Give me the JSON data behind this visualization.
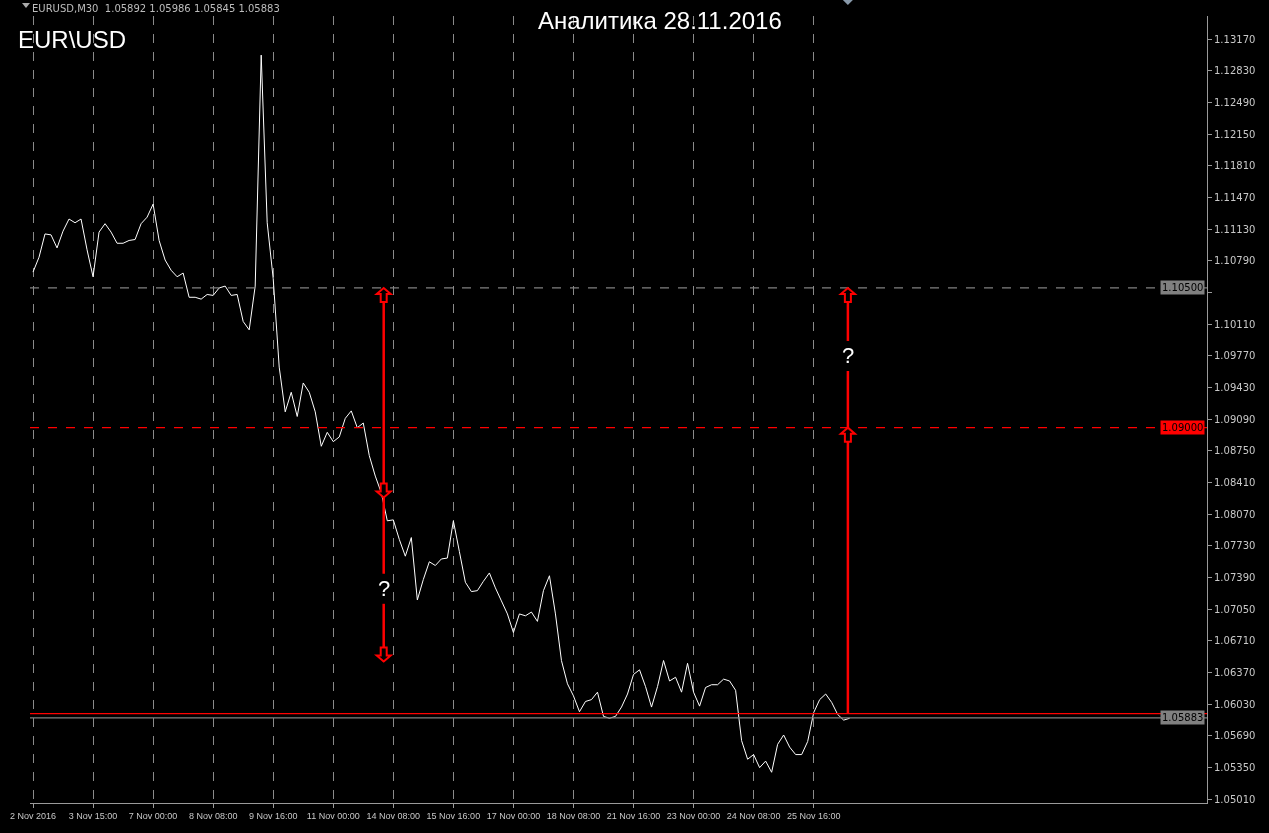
{
  "chart_data": {
    "type": "line",
    "title": "Аналитика 28.11.2016",
    "annotations": [
      "EURUSD,M30  1.05892 1.05986 1.05845 1.05883",
      "EUR\\USD",
      {
        "text": "?",
        "y": 1.0727
      },
      {
        "text": "?",
        "y": 1.0977
      }
    ],
    "categories": [
      "2 Nov 2016",
      null,
      null,
      null,
      null,
      null,
      null,
      null,
      null,
      null,
      "3 Nov 15:00",
      null,
      null,
      null,
      null,
      null,
      null,
      null,
      null,
      null,
      "7 Nov 00:00",
      null,
      null,
      null,
      null,
      null,
      null,
      null,
      null,
      null,
      "8 Nov 08:00",
      null,
      null,
      null,
      null,
      null,
      null,
      null,
      null,
      null,
      "9 Nov 16:00",
      null,
      null,
      null,
      null,
      null,
      null,
      null,
      null,
      null,
      "11 Nov 00:00",
      null,
      null,
      null,
      null,
      null,
      null,
      null,
      null,
      null,
      "14 Nov 08:00",
      null,
      null,
      null,
      null,
      null,
      null,
      null,
      null,
      null,
      "15 Nov 16:00",
      null,
      null,
      null,
      null,
      null,
      null,
      null,
      null,
      null,
      "17 Nov 00:00",
      null,
      null,
      null,
      null,
      null,
      null,
      null,
      null,
      null,
      "18 Nov 08:00",
      null,
      null,
      null,
      null,
      null,
      null,
      null,
      null,
      null,
      "21 Nov 16:00",
      null,
      null,
      null,
      null,
      null,
      null,
      null,
      null,
      null,
      "23 Nov 00:00",
      null,
      null,
      null,
      null,
      null,
      null,
      null,
      null,
      null,
      "24 Nov 08:00",
      null,
      null,
      null,
      null,
      null,
      null,
      null,
      null,
      null,
      "25 Nov 16:00",
      null,
      null,
      null,
      null,
      null,
      null,
      null,
      null,
      null,
      null,
      null,
      null,
      null,
      null,
      null,
      null,
      null,
      null,
      null,
      null,
      null,
      null,
      null,
      null,
      null,
      null,
      null,
      null,
      null,
      null,
      null,
      null,
      null,
      null,
      null,
      null,
      null,
      null,
      null,
      null,
      null,
      null,
      null,
      null,
      null,
      null,
      null,
      null,
      null,
      null,
      null,
      null,
      null,
      null,
      null,
      null,
      null,
      null,
      null,
      null,
      null,
      null,
      null,
      null,
      null
    ],
    "series": [
      {
        "color": "#ffffff",
        "values": [
          1.1067,
          1.1083,
          1.1108,
          1.1107,
          1.1093,
          1.1111,
          1.1124,
          1.112,
          1.1124,
          1.1091,
          1.1062,
          1.111,
          1.1119,
          1.111,
          1.1098,
          1.1098,
          1.1101,
          1.1102,
          1.1119,
          1.1126,
          1.114,
          1.1101,
          1.108,
          1.1069,
          1.1062,
          1.1066,
          1.104,
          1.104,
          1.1038,
          1.1043,
          1.1042,
          1.105,
          1.1052,
          1.1042,
          1.1043,
          1.1014,
          1.1005,
          1.1052,
          1.13,
          1.112,
          1.106,
          1.0965,
          1.0917,
          1.0938,
          1.0912,
          1.0948,
          1.0938,
          1.0917,
          1.088,
          1.0895,
          1.0885,
          1.089,
          1.091,
          1.0918,
          1.09,
          1.0905,
          1.087,
          1.0848,
          1.083,
          1.08,
          1.0801,
          1.078,
          1.0762,
          1.0782,
          1.0715,
          1.0737,
          1.0756,
          1.0752,
          1.0759,
          1.076,
          1.08,
          1.0767,
          1.0734,
          1.0724,
          1.0725,
          1.0735,
          1.0744,
          1.0728,
          1.0714,
          1.07,
          1.068,
          1.07,
          1.0698,
          1.0702,
          1.0692,
          1.0725,
          1.0741,
          1.07,
          1.065,
          1.0625,
          1.0612,
          1.0595,
          1.0606,
          1.0608,
          1.0616,
          1.059,
          1.0588,
          1.059,
          1.06,
          1.0614,
          1.0635,
          1.064,
          1.0622,
          1.06,
          1.0622,
          1.065,
          1.0628,
          1.0632,
          1.0616,
          1.0647,
          1.0616,
          1.0601,
          1.0621,
          1.0624,
          1.0624,
          1.063,
          1.0628,
          1.0618,
          1.0564,
          1.0544,
          1.0549,
          1.0535,
          1.0542,
          1.053,
          1.056,
          1.057,
          1.0557,
          1.0549,
          1.0549,
          1.0563,
          1.0594,
          1.0608,
          1.0614,
          1.0605,
          1.0592,
          1.0586,
          1.0588,
          null,
          null,
          null,
          null,
          null,
          null,
          null,
          null,
          null,
          null,
          null,
          null,
          null,
          null,
          null,
          null,
          null,
          null,
          null,
          null,
          null,
          null,
          null,
          null,
          null,
          null,
          null,
          null,
          null,
          null,
          null,
          null,
          null,
          null,
          null,
          null,
          null,
          null,
          null,
          null,
          null,
          null,
          null,
          null,
          null,
          null,
          null,
          null,
          null,
          null,
          null,
          null,
          null,
          null,
          null,
          null,
          null,
          null,
          null
        ]
      }
    ],
    "ylim": [
      1.0497,
      1.1342
    ],
    "yticks": [
      {
        "value": 1.0501,
        "label": "1.05010"
      },
      {
        "value": 1.0535,
        "label": "1.05350"
      },
      {
        "value": 1.0569,
        "label": "1.05690"
      },
      {
        "value": 1.0603,
        "label": "1.06030"
      },
      {
        "value": 1.0637,
        "label": "1.06370"
      },
      {
        "value": 1.0671,
        "label": "1.06710"
      },
      {
        "value": 1.0705,
        "label": "1.07050"
      },
      {
        "value": 1.0739,
        "label": "1.07390"
      },
      {
        "value": 1.0773,
        "label": "1.07730"
      },
      {
        "value": 1.0807,
        "label": "1.08070"
      },
      {
        "value": 1.0841,
        "label": "1.08410"
      },
      {
        "value": 1.0875,
        "label": "1.08750"
      },
      {
        "value": 1.0909,
        "label": "1.09090"
      },
      {
        "value": 1.0943,
        "label": "1.09430"
      },
      {
        "value": 1.0977,
        "label": "1.09770"
      },
      {
        "value": 1.1011,
        "label": "1.10110"
      },
      {
        "value": 1.1045,
        "label": null
      },
      {
        "value": 1.1079,
        "label": "1.10790"
      },
      {
        "value": 1.1113,
        "label": "1.11130"
      },
      {
        "value": 1.1147,
        "label": "1.11470"
      },
      {
        "value": 1.1181,
        "label": "1.11810"
      },
      {
        "value": 1.1215,
        "label": "1.12150"
      },
      {
        "value": 1.1249,
        "label": "1.12490"
      },
      {
        "value": 1.1283,
        "label": "1.12830"
      },
      {
        "value": 1.1317,
        "label": "1.13170"
      }
    ],
    "ref_lines": [
      {
        "axis": "y",
        "value": 1.105,
        "label": "1.10500",
        "color": "#808080",
        "line_style": "dashed"
      },
      {
        "axis": "y",
        "value": 1.09,
        "label": "1.09000",
        "color": "#ff0000",
        "line_style": "dashed"
      },
      {
        "axis": "y",
        "value": 1.0593,
        "label": null,
        "color": "#ff0000",
        "line_style": "solid"
      },
      {
        "axis": "y",
        "value": 1.05883,
        "label": "1.05883",
        "color": "#808080",
        "line_style": "solid"
      }
    ],
    "grid": "x",
    "marker": "none",
    "line_style": "solid"
  }
}
